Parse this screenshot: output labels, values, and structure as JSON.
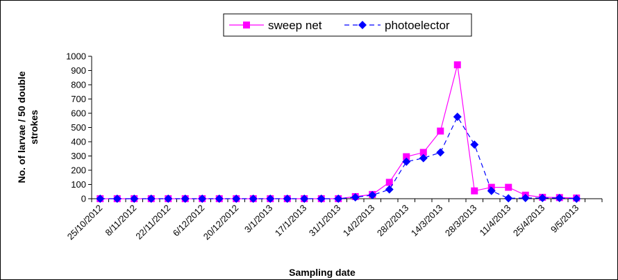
{
  "chart_data": {
    "type": "line",
    "xlabel": "Sampling date",
    "ylabel": "No. of larvae / 50 double strokes",
    "ylabel_lines": [
      "No. of larvae / 50 double",
      "strokes"
    ],
    "ylim": [
      0,
      1000
    ],
    "yticks": [
      0,
      100,
      200,
      300,
      400,
      500,
      600,
      700,
      800,
      900,
      1000
    ],
    "x": [
      "25/10/2012",
      "1/11/2012",
      "8/11/2012",
      "15/11/2012",
      "22/11/2012",
      "29/11/2012",
      "6/12/2012",
      "13/12/2012",
      "20/12/2012",
      "27/12/2012",
      "3/1/2013",
      "10/1/2013",
      "17/1/2013",
      "24/1/2013",
      "31/1/2013",
      "7/2/2013",
      "14/2/2013",
      "21/2/2013",
      "28/2/2013",
      "7/3/2013",
      "14/3/2013",
      "21/3/2013",
      "28/3/2013",
      "4/4/2013",
      "11/4/2013",
      "18/4/2013",
      "25/4/2013",
      "2/5/2013",
      "9/5/2013",
      "16/5/2013"
    ],
    "xtick_labels": [
      "25/10/2012",
      "8/11/2012",
      "22/11/2012",
      "6/12/2012",
      "20/12/2012",
      "3/1/2013",
      "17/1/2013",
      "31/1/2013",
      "14/2/2013",
      "28/2/2013",
      "14/3/2013",
      "28/3/2013",
      "11/4/2013",
      "25/4/2013",
      "9/5/2013"
    ],
    "grid": false,
    "legend_position": "top",
    "series": [
      {
        "name": "sweep net",
        "color": "#ff00ff",
        "marker": "square",
        "line_style": "solid",
        "values": [
          0,
          0,
          0,
          0,
          0,
          0,
          0,
          0,
          0,
          0,
          0,
          0,
          0,
          0,
          0,
          15,
          30,
          115,
          295,
          325,
          475,
          940,
          55,
          80,
          80,
          25,
          10,
          8,
          5,
          null
        ]
      },
      {
        "name": "photoelector",
        "color": "#0000ff",
        "marker": "diamond",
        "line_style": "dashed",
        "values": [
          0,
          0,
          0,
          0,
          0,
          0,
          0,
          0,
          0,
          0,
          0,
          0,
          0,
          0,
          0,
          10,
          25,
          65,
          260,
          285,
          325,
          575,
          380,
          55,
          3,
          5,
          5,
          5,
          0,
          null
        ]
      }
    ]
  }
}
